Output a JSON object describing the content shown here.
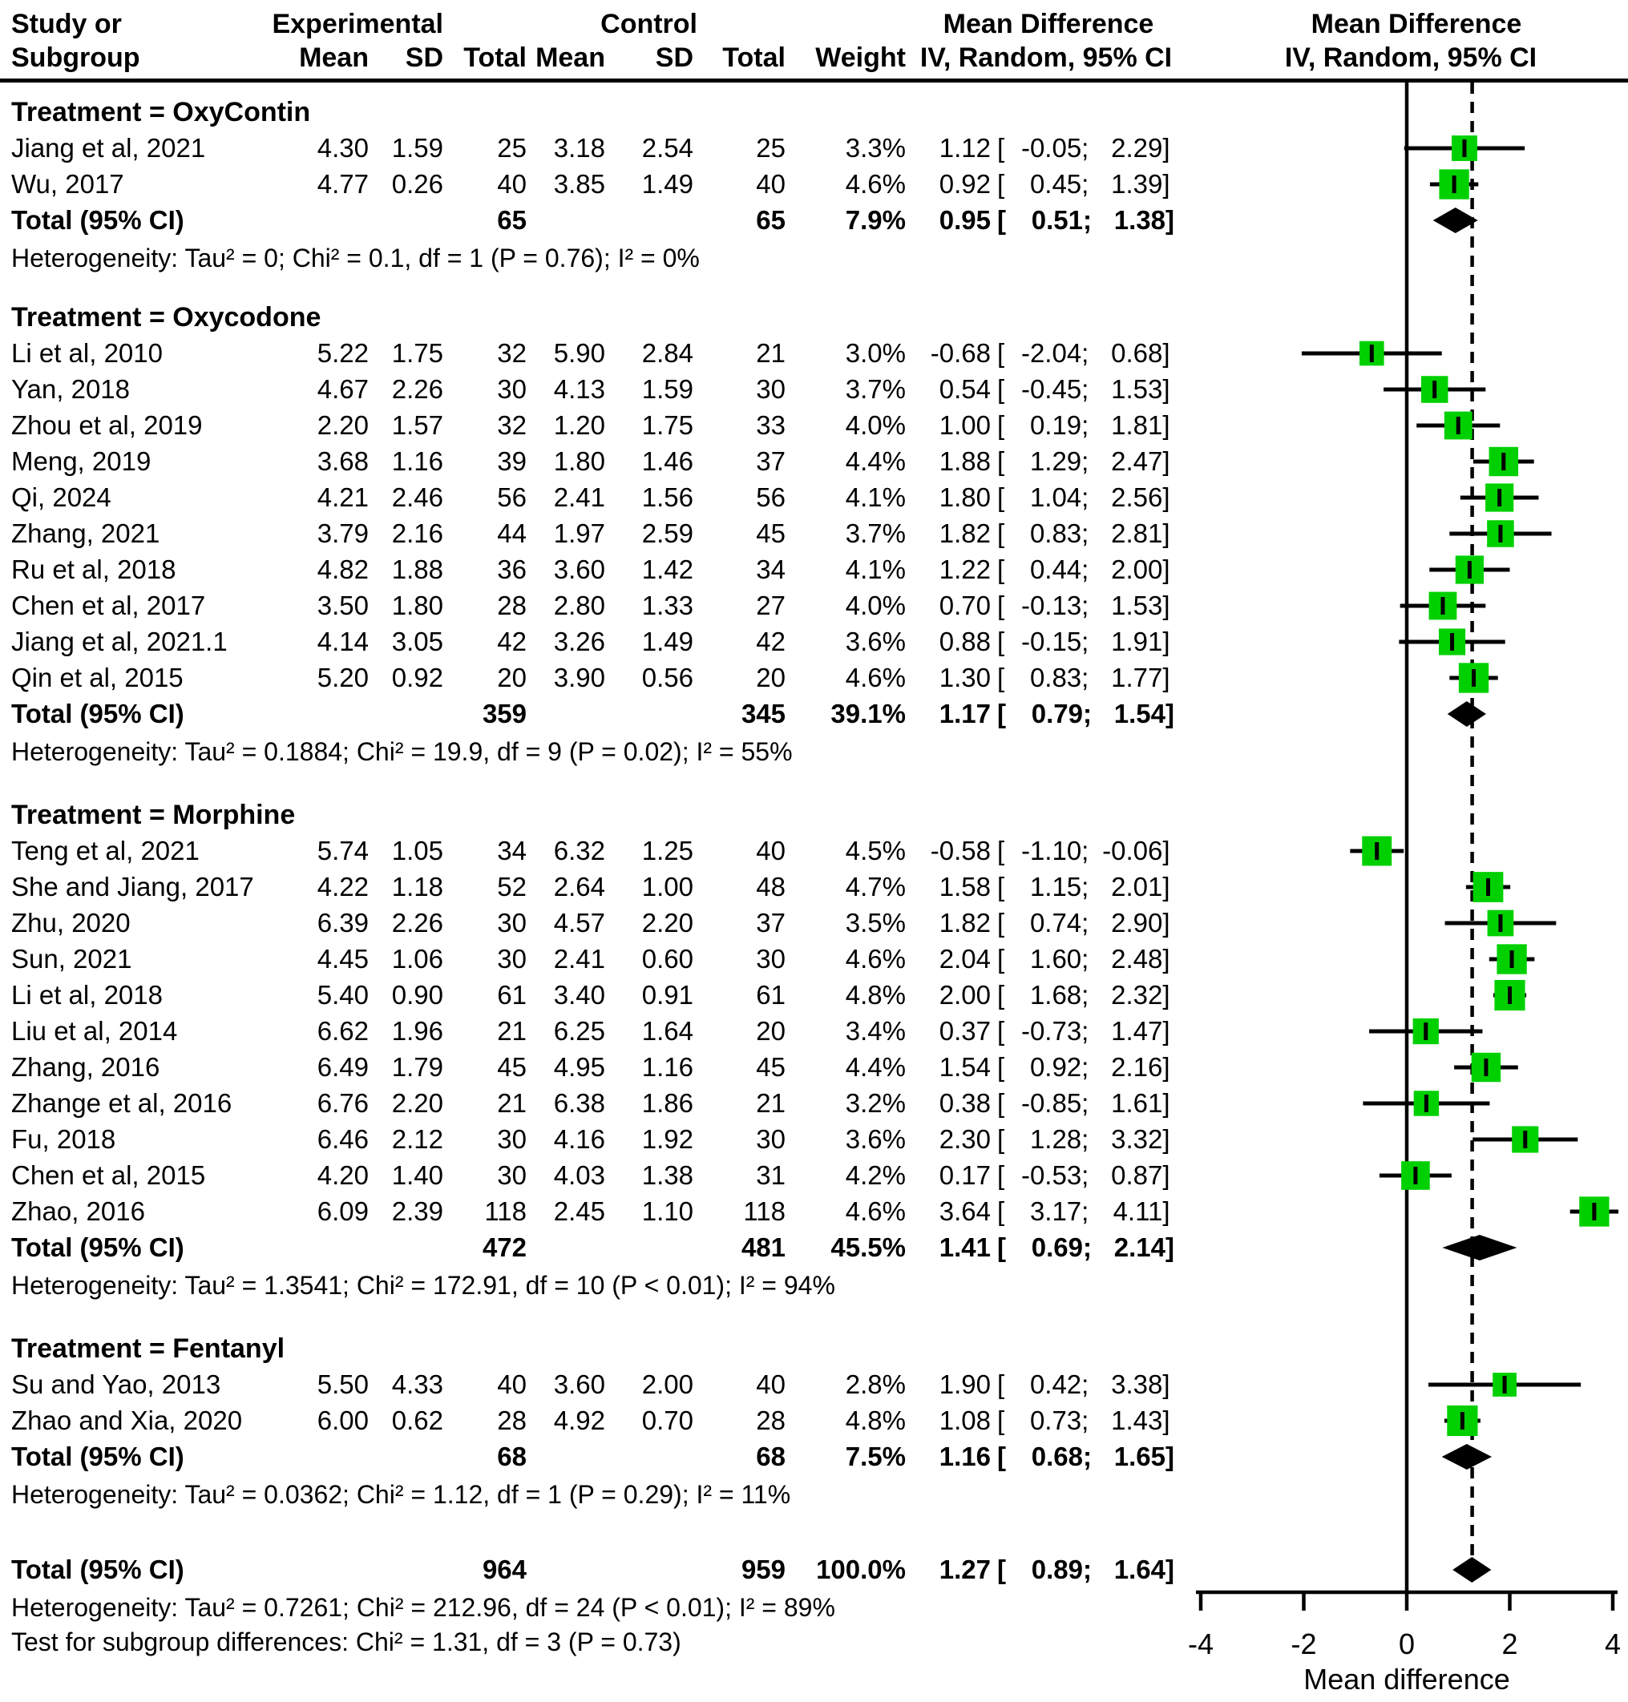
{
  "header": {
    "study_line1": "Study or",
    "study_line2": "Subgroup",
    "experimental": "Experimental",
    "control": "Control",
    "mean_e": "Mean",
    "sd_e": "SD",
    "total_e": "Total",
    "mean_c": "Mean",
    "sd_c": "SD",
    "total_c": "Total",
    "weight": "Weight",
    "md_text_line1": "Mean Difference",
    "md_text_line2": "IV, Random, 95% CI",
    "md_plot_line1": "Mean Difference",
    "md_plot_line2": "IV, Random, 95% CI"
  },
  "chart_data": {
    "type": "forest",
    "x_axis": {
      "min": -4,
      "max": 4,
      "tick_values": [
        -4,
        -2,
        0,
        2,
        4
      ],
      "ticks": [
        "-4",
        "-2",
        "0",
        "2",
        "4"
      ],
      "label": "Mean difference"
    },
    "reference_line": 0,
    "overall_dashed_line": 1.27,
    "marker_color": "#00D000",
    "summary_color": "#000000",
    "ci_format": {
      "open": "[",
      "sep": ";",
      "close": "]"
    },
    "groups": [
      {
        "title": "Treatment = OxyContin",
        "studies": [
          {
            "study": "Jiang et al, 2021",
            "mean_e": "4.30",
            "sd_e": "1.59",
            "n_e": "25",
            "mean_c": "3.18",
            "sd_c": "2.54",
            "n_c": "25",
            "weight": "3.3%",
            "est": "1.12",
            "lo": "-0.05",
            "hi": "2.29"
          },
          {
            "study": "Wu, 2017",
            "mean_e": "4.77",
            "sd_e": "0.26",
            "n_e": "40",
            "mean_c": "3.85",
            "sd_c": "1.49",
            "n_c": "40",
            "weight": "4.6%",
            "est": "0.92",
            "lo": "0.45",
            "hi": "1.39"
          }
        ],
        "total": {
          "label": "Total (95% CI)",
          "n_e": "65",
          "n_c": "65",
          "weight": "7.9%",
          "est": "0.95",
          "lo": "0.51",
          "hi": "1.38"
        },
        "heterogeneity": "Heterogeneity: Tau² = 0; Chi² = 0.1, df = 1 (P = 0.76); I² = 0%"
      },
      {
        "title": "Treatment = Oxycodone",
        "studies": [
          {
            "study": "Li et al, 2010",
            "mean_e": "5.22",
            "sd_e": "1.75",
            "n_e": "32",
            "mean_c": "5.90",
            "sd_c": "2.84",
            "n_c": "21",
            "weight": "3.0%",
            "est": "-0.68",
            "lo": "-2.04",
            "hi": "0.68"
          },
          {
            "study": "Yan, 2018",
            "mean_e": "4.67",
            "sd_e": "2.26",
            "n_e": "30",
            "mean_c": "4.13",
            "sd_c": "1.59",
            "n_c": "30",
            "weight": "3.7%",
            "est": "0.54",
            "lo": "-0.45",
            "hi": "1.53"
          },
          {
            "study": "Zhou et al, 2019",
            "mean_e": "2.20",
            "sd_e": "1.57",
            "n_e": "32",
            "mean_c": "1.20",
            "sd_c": "1.75",
            "n_c": "33",
            "weight": "4.0%",
            "est": "1.00",
            "lo": "0.19",
            "hi": "1.81"
          },
          {
            "study": "Meng, 2019",
            "mean_e": "3.68",
            "sd_e": "1.16",
            "n_e": "39",
            "mean_c": "1.80",
            "sd_c": "1.46",
            "n_c": "37",
            "weight": "4.4%",
            "est": "1.88",
            "lo": "1.29",
            "hi": "2.47"
          },
          {
            "study": "Qi, 2024",
            "mean_e": "4.21",
            "sd_e": "2.46",
            "n_e": "56",
            "mean_c": "2.41",
            "sd_c": "1.56",
            "n_c": "56",
            "weight": "4.1%",
            "est": "1.80",
            "lo": "1.04",
            "hi": "2.56"
          },
          {
            "study": "Zhang, 2021",
            "mean_e": "3.79",
            "sd_e": "2.16",
            "n_e": "44",
            "mean_c": "1.97",
            "sd_c": "2.59",
            "n_c": "45",
            "weight": "3.7%",
            "est": "1.82",
            "lo": "0.83",
            "hi": "2.81"
          },
          {
            "study": "Ru et al, 2018",
            "mean_e": "4.82",
            "sd_e": "1.88",
            "n_e": "36",
            "mean_c": "3.60",
            "sd_c": "1.42",
            "n_c": "34",
            "weight": "4.1%",
            "est": "1.22",
            "lo": "0.44",
            "hi": "2.00"
          },
          {
            "study": "Chen et al, 2017",
            "mean_e": "3.50",
            "sd_e": "1.80",
            "n_e": "28",
            "mean_c": "2.80",
            "sd_c": "1.33",
            "n_c": "27",
            "weight": "4.0%",
            "est": "0.70",
            "lo": "-0.13",
            "hi": "1.53"
          },
          {
            "study": "Jiang et al, 2021.1",
            "mean_e": "4.14",
            "sd_e": "3.05",
            "n_e": "42",
            "mean_c": "3.26",
            "sd_c": "1.49",
            "n_c": "42",
            "weight": "3.6%",
            "est": "0.88",
            "lo": "-0.15",
            "hi": "1.91"
          },
          {
            "study": "Qin et al, 2015",
            "mean_e": "5.20",
            "sd_e": "0.92",
            "n_e": "20",
            "mean_c": "3.90",
            "sd_c": "0.56",
            "n_c": "20",
            "weight": "4.6%",
            "est": "1.30",
            "lo": "0.83",
            "hi": "1.77"
          }
        ],
        "total": {
          "label": "Total (95% CI)",
          "n_e": "359",
          "n_c": "345",
          "weight": "39.1%",
          "est": "1.17",
          "lo": "0.79",
          "hi": "1.54"
        },
        "heterogeneity": "Heterogeneity: Tau² = 0.1884; Chi² = 19.9, df = 9 (P = 0.02); I² = 55%"
      },
      {
        "title": "Treatment = Morphine",
        "studies": [
          {
            "study": "Teng et al, 2021",
            "mean_e": "5.74",
            "sd_e": "1.05",
            "n_e": "34",
            "mean_c": "6.32",
            "sd_c": "1.25",
            "n_c": "40",
            "weight": "4.5%",
            "est": "-0.58",
            "lo": "-1.10",
            "hi": "-0.06"
          },
          {
            "study": "She and Jiang, 2017",
            "mean_e": "4.22",
            "sd_e": "1.18",
            "n_e": "52",
            "mean_c": "2.64",
            "sd_c": "1.00",
            "n_c": "48",
            "weight": "4.7%",
            "est": "1.58",
            "lo": "1.15",
            "hi": "2.01"
          },
          {
            "study": "Zhu, 2020",
            "mean_e": "6.39",
            "sd_e": "2.26",
            "n_e": "30",
            "mean_c": "4.57",
            "sd_c": "2.20",
            "n_c": "37",
            "weight": "3.5%",
            "est": "1.82",
            "lo": "0.74",
            "hi": "2.90"
          },
          {
            "study": "Sun, 2021",
            "mean_e": "4.45",
            "sd_e": "1.06",
            "n_e": "30",
            "mean_c": "2.41",
            "sd_c": "0.60",
            "n_c": "30",
            "weight": "4.6%",
            "est": "2.04",
            "lo": "1.60",
            "hi": "2.48"
          },
          {
            "study": "Li et al, 2018",
            "mean_e": "5.40",
            "sd_e": "0.90",
            "n_e": "61",
            "mean_c": "3.40",
            "sd_c": "0.91",
            "n_c": "61",
            "weight": "4.8%",
            "est": "2.00",
            "lo": "1.68",
            "hi": "2.32"
          },
          {
            "study": "Liu et al, 2014",
            "mean_e": "6.62",
            "sd_e": "1.96",
            "n_e": "21",
            "mean_c": "6.25",
            "sd_c": "1.64",
            "n_c": "20",
            "weight": "3.4%",
            "est": "0.37",
            "lo": "-0.73",
            "hi": "1.47"
          },
          {
            "study": "Zhang, 2016",
            "mean_e": "6.49",
            "sd_e": "1.79",
            "n_e": "45",
            "mean_c": "4.95",
            "sd_c": "1.16",
            "n_c": "45",
            "weight": "4.4%",
            "est": "1.54",
            "lo": "0.92",
            "hi": "2.16"
          },
          {
            "study": "Zhange et al, 2016",
            "mean_e": "6.76",
            "sd_e": "2.20",
            "n_e": "21",
            "mean_c": "6.38",
            "sd_c": "1.86",
            "n_c": "21",
            "weight": "3.2%",
            "est": "0.38",
            "lo": "-0.85",
            "hi": "1.61"
          },
          {
            "study": "Fu, 2018",
            "mean_e": "6.46",
            "sd_e": "2.12",
            "n_e": "30",
            "mean_c": "4.16",
            "sd_c": "1.92",
            "n_c": "30",
            "weight": "3.6%",
            "est": "2.30",
            "lo": "1.28",
            "hi": "3.32"
          },
          {
            "study": "Chen et al, 2015",
            "mean_e": "4.20",
            "sd_e": "1.40",
            "n_e": "30",
            "mean_c": "4.03",
            "sd_c": "1.38",
            "n_c": "31",
            "weight": "4.2%",
            "est": "0.17",
            "lo": "-0.53",
            "hi": "0.87"
          },
          {
            "study": "Zhao, 2016",
            "mean_e": "6.09",
            "sd_e": "2.39",
            "n_e": "118",
            "mean_c": "2.45",
            "sd_c": "1.10",
            "n_c": "118",
            "weight": "4.6%",
            "est": "3.64",
            "lo": "3.17",
            "hi": "4.11"
          }
        ],
        "total": {
          "label": "Total (95% CI)",
          "n_e": "472",
          "n_c": "481",
          "weight": "45.5%",
          "est": "1.41",
          "lo": "0.69",
          "hi": "2.14"
        },
        "heterogeneity": "Heterogeneity: Tau² = 1.3541; Chi² = 172.91, df = 10 (P < 0.01); I² = 94%"
      },
      {
        "title": "Treatment = Fentanyl",
        "studies": [
          {
            "study": "Su and Yao, 2013",
            "mean_e": "5.50",
            "sd_e": "4.33",
            "n_e": "40",
            "mean_c": "3.60",
            "sd_c": "2.00",
            "n_c": "40",
            "weight": "2.8%",
            "est": "1.90",
            "lo": "0.42",
            "hi": "3.38"
          },
          {
            "study": "Zhao and Xia, 2020",
            "mean_e": "6.00",
            "sd_e": "0.62",
            "n_e": "28",
            "mean_c": "4.92",
            "sd_c": "0.70",
            "n_c": "28",
            "weight": "4.8%",
            "est": "1.08",
            "lo": "0.73",
            "hi": "1.43"
          }
        ],
        "total": {
          "label": "Total (95% CI)",
          "n_e": "68",
          "n_c": "68",
          "weight": "7.5%",
          "est": "1.16",
          "lo": "0.68",
          "hi": "1.65"
        },
        "heterogeneity": "Heterogeneity: Tau² = 0.0362; Chi² = 1.12, df = 1 (P = 0.29); I² = 11%"
      }
    ],
    "overall": {
      "label": "Total (95% CI)",
      "n_e": "964",
      "n_c": "959",
      "weight": "100.0%",
      "est": "1.27",
      "lo": "0.89",
      "hi": "1.64"
    },
    "overall_heterogeneity": "Heterogeneity: Tau² = 0.7261; Chi² = 212.96, df = 24 (P < 0.01); I² = 89%",
    "subgroup_test": "Test for subgroup differences: Chi² = 1.31, df = 3 (P = 0.73)"
  }
}
